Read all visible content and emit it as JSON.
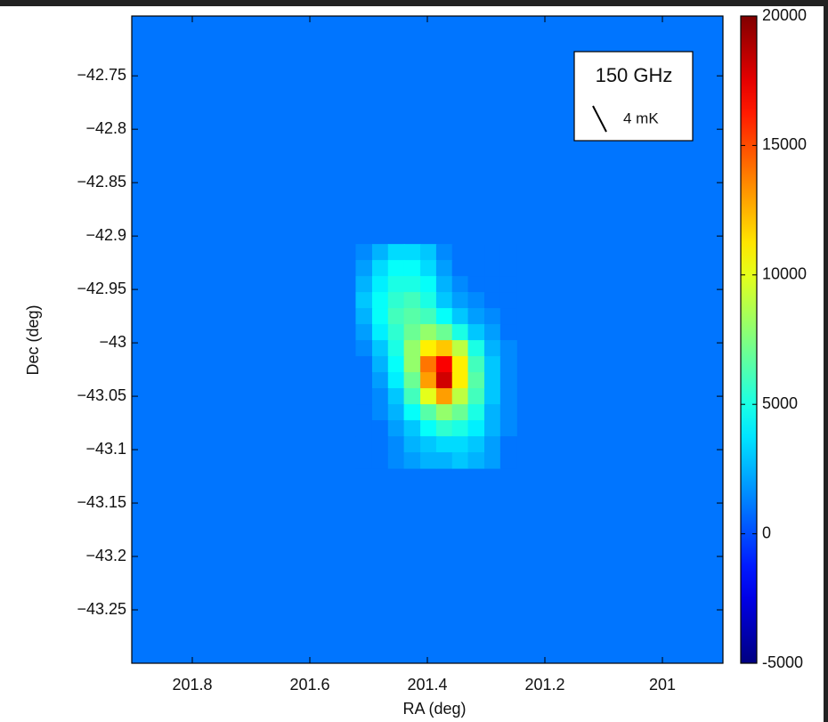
{
  "chart_data": {
    "type": "heatmap",
    "xlabel": "RA (deg)",
    "ylabel": "Dec (deg)",
    "legend_title": "150 GHz",
    "vector_scale_label": "4 mK",
    "colormap": "jet",
    "xlim": [
      201.903,
      200.897
    ],
    "ylim": [
      -43.3,
      -42.694
    ],
    "xticks": [
      201.8,
      201.6,
      201.4,
      201.2,
      201
    ],
    "yticks": [
      {
        "value": -42.75,
        "label": "−42.75"
      },
      {
        "value": -42.8,
        "label": "−42.8"
      },
      {
        "value": -42.85,
        "label": "−42.85"
      },
      {
        "value": -42.9,
        "label": "−42.9"
      },
      {
        "value": -42.95,
        "label": "−42.95"
      },
      {
        "value": -43,
        "label": "−43"
      },
      {
        "value": -43.05,
        "label": "−43.05"
      },
      {
        "value": -43.1,
        "label": "−43.1"
      },
      {
        "value": -43.15,
        "label": "−43.15"
      },
      {
        "value": -43.2,
        "label": "−43.2"
      },
      {
        "value": -43.25,
        "label": "−43.25"
      }
    ],
    "clim": [
      -5000,
      20000
    ],
    "cticks": [
      -5000,
      0,
      5000,
      10000,
      15000,
      20000
    ],
    "background_value": 1000,
    "x": [
      201.508,
      201.48,
      201.453,
      201.426,
      201.398,
      201.371,
      201.344,
      201.317,
      201.289,
      201.262
    ],
    "y": [
      -42.915,
      -42.93,
      -42.945,
      -42.96,
      -42.975,
      -42.99,
      -43.005,
      -43.02,
      -43.035,
      -43.05,
      -43.065,
      -43.08,
      -43.095,
      -43.11
    ],
    "z": [
      [
        1500,
        2500,
        3500,
        3500,
        3000,
        1500,
        1000,
        1000,
        1000,
        1000
      ],
      [
        2000,
        3500,
        4500,
        4500,
        3500,
        2000,
        1000,
        1000,
        1000,
        1000
      ],
      [
        2500,
        4000,
        5000,
        5000,
        4500,
        2500,
        1500,
        1000,
        1000,
        1000
      ],
      [
        3000,
        4500,
        5500,
        6000,
        5000,
        3000,
        2000,
        1500,
        1000,
        1000
      ],
      [
        2500,
        4500,
        6000,
        6500,
        6000,
        4500,
        3000,
        2000,
        1500,
        1000
      ],
      [
        2000,
        4000,
        5500,
        7000,
        8000,
        7000,
        5000,
        3000,
        2000,
        1000
      ],
      [
        1500,
        3000,
        5000,
        8000,
        11000,
        12000,
        9000,
        5000,
        2500,
        1500
      ],
      [
        1000,
        2500,
        4500,
        8000,
        14000,
        17000,
        11000,
        6000,
        3000,
        1500
      ],
      [
        1000,
        2000,
        4000,
        7000,
        13000,
        18000,
        11000,
        6500,
        3000,
        1500
      ],
      [
        1000,
        1500,
        3000,
        6000,
        10000,
        13000,
        9000,
        6000,
        3000,
        1500
      ],
      [
        1000,
        1500,
        2500,
        4500,
        6500,
        8000,
        7000,
        5000,
        2500,
        1500
      ],
      [
        1000,
        1000,
        2000,
        3000,
        4500,
        5500,
        5000,
        4000,
        2500,
        1500
      ],
      [
        1000,
        1000,
        1500,
        2500,
        3000,
        3500,
        3500,
        3000,
        2000,
        1000
      ],
      [
        1000,
        1000,
        1500,
        2000,
        2500,
        2500,
        3000,
        2500,
        2000,
        1000
      ]
    ]
  }
}
